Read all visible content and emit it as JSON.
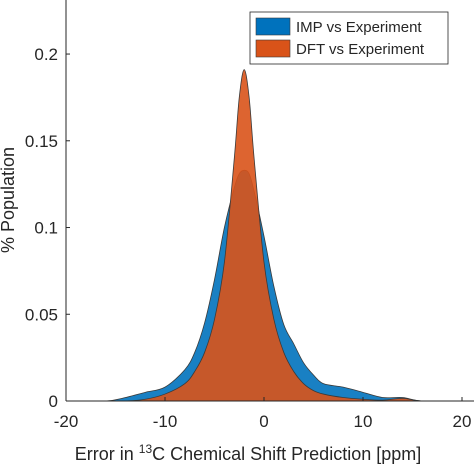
{
  "chart_data": {
    "type": "area",
    "xlabel_prefix": "Error in ",
    "xlabel_superscript": "13",
    "xlabel_suffix": "C Chemical Shift Prediction [ppm]",
    "ylabel": "% Population",
    "xlim": [
      -20,
      20
    ],
    "ylim": [
      0,
      0.23
    ],
    "xticks": [
      -20,
      -10,
      0,
      10,
      20
    ],
    "xtick_labels": [
      "-20",
      "-10",
      "0",
      "10",
      "20"
    ],
    "yticks": [
      0,
      0.05,
      0.1,
      0.15,
      0.2
    ],
    "ytick_labels": [
      "0",
      "0.05",
      "0.1",
      "0.15",
      "0.2"
    ],
    "grid": false,
    "legend_position": "top-right",
    "series": [
      {
        "name": "IMP vs Experiment",
        "color": "#0072BD",
        "x": [
          -20,
          -16,
          -14,
          -12,
          -10,
          -8,
          -7,
          -6,
          -5,
          -4,
          -3,
          -2.5,
          -2,
          -1.5,
          -1,
          0,
          1,
          2,
          3,
          4,
          5,
          6,
          8,
          10,
          12,
          14,
          16,
          20
        ],
        "y": [
          0,
          0,
          0.002,
          0.005,
          0.008,
          0.018,
          0.028,
          0.045,
          0.07,
          0.1,
          0.123,
          0.131,
          0.133,
          0.131,
          0.121,
          0.095,
          0.066,
          0.044,
          0.033,
          0.022,
          0.015,
          0.01,
          0.008,
          0.005,
          0.002,
          0.002,
          0,
          0
        ]
      },
      {
        "name": "DFT vs Experiment",
        "color": "#D95319",
        "x": [
          -20,
          -16,
          -14,
          -12,
          -10,
          -8,
          -7,
          -6,
          -5,
          -4,
          -3,
          -2.5,
          -2,
          -1.5,
          -1,
          0,
          1,
          2,
          3,
          4,
          5,
          6,
          8,
          10,
          12,
          14,
          16,
          20
        ],
        "y": [
          0,
          0,
          0,
          0.001,
          0.004,
          0.01,
          0.017,
          0.028,
          0.047,
          0.08,
          0.14,
          0.175,
          0.191,
          0.175,
          0.14,
          0.08,
          0.047,
          0.028,
          0.017,
          0.01,
          0.006,
          0.004,
          0.002,
          0.001,
          0.0005,
          0.0015,
          0,
          0
        ]
      }
    ]
  }
}
